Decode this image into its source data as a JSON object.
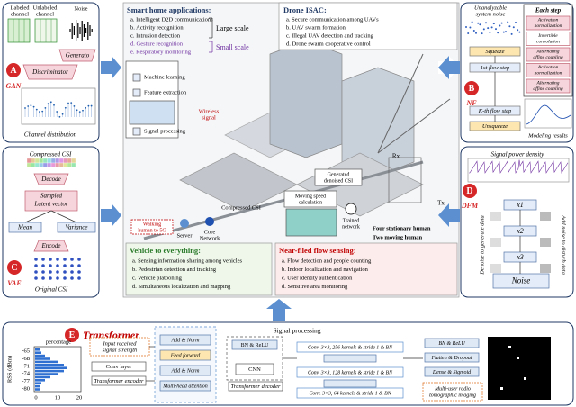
{
  "gan": {
    "badge": "A",
    "name": "GAN",
    "labeled": [
      "Labeled",
      "channel"
    ],
    "unlabeled": [
      "Unlabeled",
      "channel"
    ],
    "noise": "Noise",
    "generator": "Generato",
    "discriminator": "Discriminator",
    "caption": "Channel distribution"
  },
  "vae": {
    "badge": "C",
    "name": "VAE",
    "compressed": "Compressed CSI",
    "decode": "Decode",
    "latent": [
      "Sampled",
      "Latent vector"
    ],
    "mean": "Mean",
    "variance": "Variance",
    "encode": "Encode",
    "caption": "Original CSI"
  },
  "nf": {
    "badge": "B",
    "name": "NF",
    "noise": [
      "Unanalyzable",
      "system noise"
    ],
    "each_step": "Each step",
    "steps": [
      [
        "Activation",
        "normalization"
      ],
      [
        "Invertible",
        "convolution"
      ],
      [
        "Alternating",
        "affine coupling"
      ],
      [
        "Activation",
        "normalization"
      ],
      [
        "Alternating",
        "affine coupling"
      ]
    ],
    "squeeze": "Squeeze",
    "first": "1st flow step",
    "kth": "K-th flow step",
    "unsqueeze": "Unsqueeze",
    "results": "Modeling results"
  },
  "dfm": {
    "badge": "D",
    "name": "DFM",
    "density": "Signal power density",
    "x1": "x1",
    "x2": "x2",
    "x3": "x3",
    "noise": "Noise",
    "denoise": "Denoise to generate data",
    "add_noise": "Add noise to disturb data"
  },
  "home": {
    "title": "Smart home applications:",
    "items": [
      "a.  Intelligent D2D communications",
      "b.  Activity recognition",
      "c.  Intrusion detection",
      "d.  Gesture recognition",
      "e.  Respiratory monitoring"
    ],
    "large": "Large scale",
    "small": "Small scale",
    "ml": "Machine learning",
    "fe": "Feature extraction",
    "sp": "Signal processing",
    "wireless": [
      "Wireless",
      "signal"
    ]
  },
  "drone": {
    "title": "Drone ISAC:",
    "items": [
      "a.  Secure communication among UAVs",
      "b.  UAV swarm formation",
      "c.  Illegal UAV detection and tracking",
      "d.  Drone swarm cooperative control"
    ]
  },
  "v2x": {
    "title": "Vehicle to everything:",
    "items": [
      "a.  Sensing information sharing among vehicles",
      "b.  Pedestrian detection and tracking",
      "c.  Vehicle platooning",
      "d.  Simultaneous localization and mapping"
    ],
    "walking": [
      "Walking",
      "human to 5G"
    ],
    "server": "Server",
    "core": [
      "Core",
      "Network"
    ],
    "csi": "Compressed CSI"
  },
  "near": {
    "title": "Near-filed flow sensing:",
    "items": [
      "a.  Flow detection and people counting",
      "b.  Indoor localization and navigation",
      "c.  User identity authentication",
      "d.  Sensitive area monitoring"
    ],
    "generated": [
      "Generated",
      "denoised CSI"
    ],
    "speed": [
      "Moving speed",
      "calculation"
    ],
    "trained": [
      "Trained",
      "network"
    ],
    "four": "Four stationary human",
    "two": "Two moving human",
    "rx": "Rx",
    "tx": "Tx"
  },
  "transformer": {
    "badge": "E",
    "name": "Transformer",
    "signal_processing": "Signal processing",
    "xlabel": "percentage",
    "ylabel": "RSS (dBm)",
    "yticks": [
      -65,
      -68,
      -71,
      -74,
      -77,
      -80
    ],
    "xticks": [
      0,
      10,
      20
    ],
    "input": [
      "Input received",
      "signal strength"
    ],
    "conv": "Conv layer",
    "encoder": "Transformer encoder",
    "stack": [
      "Add & Norm",
      "Feed forward",
      "Add & Norm",
      "Multi-head attention"
    ],
    "bn": "BN & ReLU",
    "cnn": "CNN",
    "decoder": "Transformer decoder",
    "convs": [
      "Conv. 3×3, 256 kernels & stride 1 & BN",
      "Conv. 3×3, 128 kernels & stride 1 & BN",
      "Conv. 3×3, 64 kernels & stride 1 & BN"
    ],
    "head": [
      "BN & ReLU",
      "Flatten & Dropout",
      "Dense & Sigmoid"
    ],
    "imaging": [
      "Multi-user radio",
      "tomographic imaging"
    ]
  }
}
